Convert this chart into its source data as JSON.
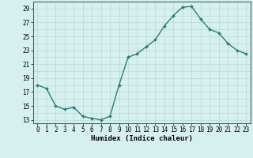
{
  "x": [
    0,
    1,
    2,
    3,
    4,
    5,
    6,
    7,
    8,
    9,
    10,
    11,
    12,
    13,
    14,
    15,
    16,
    17,
    18,
    19,
    20,
    21,
    22,
    23
  ],
  "y": [
    18.0,
    17.5,
    15.0,
    14.5,
    14.8,
    13.5,
    13.2,
    13.0,
    13.5,
    18.0,
    22.0,
    22.5,
    23.5,
    24.5,
    26.5,
    28.0,
    29.2,
    29.3,
    27.5,
    26.0,
    25.5,
    24.0,
    23.0,
    22.5
  ],
  "line_color": "#2e7d6e",
  "marker": "D",
  "marker_size": 2.0,
  "bg_color": "#d6f0f0",
  "grid_color": "#b8d8d8",
  "xlabel": "Humidex (Indice chaleur)",
  "xlabel_weight": "bold",
  "xlim": [
    -0.5,
    23.5
  ],
  "ylim": [
    12.5,
    30.0
  ],
  "yticks": [
    13,
    15,
    17,
    19,
    21,
    23,
    25,
    27,
    29
  ],
  "xticks": [
    0,
    1,
    2,
    3,
    4,
    5,
    6,
    7,
    8,
    9,
    10,
    11,
    12,
    13,
    14,
    15,
    16,
    17,
    18,
    19,
    20,
    21,
    22,
    23
  ],
  "tick_fontsize": 5.5,
  "xlabel_fontsize": 6.5,
  "linewidth": 1.0
}
